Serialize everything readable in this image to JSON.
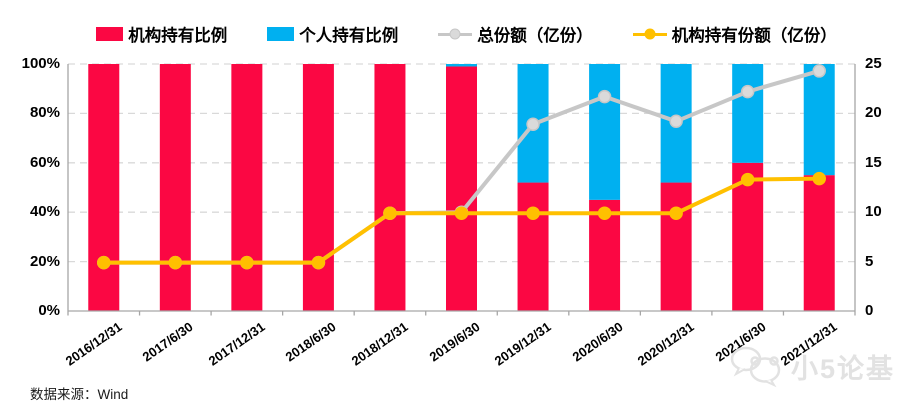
{
  "legend": {
    "items": [
      {
        "label": "机构持有比例",
        "glyph": "box",
        "color": "#FB0743"
      },
      {
        "label": "个人持有比例",
        "glyph": "box",
        "color": "#00B0F0"
      },
      {
        "label": "总份额（亿份）",
        "glyph": "line",
        "color": "#C7C7C7",
        "marker_fill": "#DADADA"
      },
      {
        "label": "机构持有份额（亿份）",
        "glyph": "line",
        "color": "#FFC000",
        "marker_fill": "#FFC000"
      }
    ]
  },
  "chart_data": {
    "type": "bar",
    "subtype": "100%-stacked-columns-with-two-lines",
    "title": "",
    "categories": [
      "2016/12/31",
      "2017/6/30",
      "2017/12/31",
      "2018/6/30",
      "2018/12/31",
      "2019/6/30",
      "2019/12/31",
      "2020/6/30",
      "2020/12/31",
      "2021/6/30",
      "2021/12/31"
    ],
    "series": [
      {
        "name": "机构持有比例",
        "type": "bar-stack",
        "axis": "left",
        "unit": "%",
        "color": "#FB0743",
        "values": [
          100,
          100,
          100,
          100,
          100,
          99,
          52,
          45,
          52,
          60,
          55
        ]
      },
      {
        "name": "个人持有比例",
        "type": "bar-stack",
        "axis": "left",
        "unit": "%",
        "color": "#00B0F0",
        "values": [
          0,
          0,
          0,
          0,
          0,
          1,
          48,
          55,
          48,
          40,
          45
        ]
      },
      {
        "name": "总份额（亿份）",
        "type": "line",
        "axis": "right",
        "unit": "亿份",
        "color": "#C7C7C7",
        "marker_fill": "#DADADA",
        "values": [
          4.9,
          4.9,
          4.9,
          4.9,
          9.9,
          10.0,
          18.9,
          21.7,
          19.2,
          22.2,
          24.3
        ]
      },
      {
        "name": "机构持有份额（亿份）",
        "type": "line",
        "axis": "right",
        "unit": "亿份",
        "color": "#FFC000",
        "marker_fill": "#FFC000",
        "values": [
          4.9,
          4.9,
          4.9,
          4.9,
          9.9,
          9.9,
          9.9,
          9.9,
          9.9,
          13.3,
          13.4
        ]
      }
    ],
    "left_axis": {
      "min": 0,
      "max": 100,
      "ticks": [
        "0%",
        "20%",
        "40%",
        "60%",
        "80%",
        "100%"
      ]
    },
    "right_axis": {
      "min": 0,
      "max": 25,
      "ticks": [
        "0",
        "5",
        "10",
        "15",
        "20",
        "25"
      ]
    },
    "grid": "horizontal-dashed",
    "legend_position": "top"
  },
  "colors": {
    "grid": "#D9D9D9",
    "axis": "#A6A6A6",
    "text": "#000000"
  },
  "footer": {
    "source": "数据来源：Wind"
  },
  "watermark": {
    "text": "小5论基"
  }
}
